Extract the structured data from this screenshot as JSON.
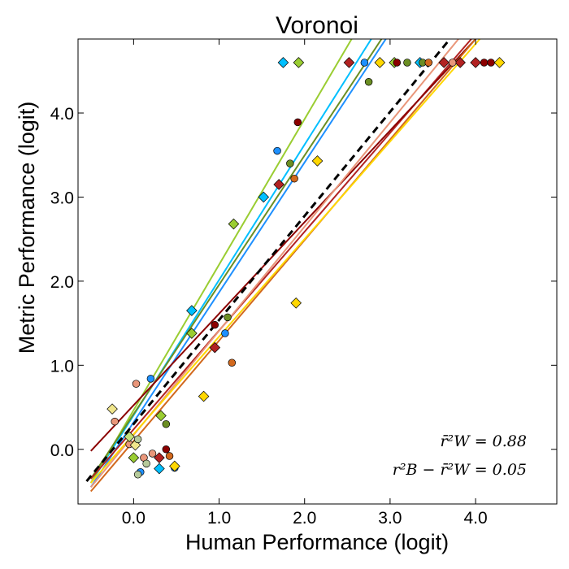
{
  "chart_data": {
    "type": "scatter",
    "title": "Voronoi",
    "xlabel": "Human Performance (logit)",
    "ylabel": "Metric Performance (logit)",
    "xlim": [
      -0.65,
      4.95
    ],
    "ylim": [
      -0.65,
      4.88
    ],
    "xticks": [
      0.0,
      1.0,
      2.0,
      3.0,
      4.0
    ],
    "yticks": [
      0.0,
      1.0,
      2.0,
      3.0,
      4.0
    ],
    "xtick_labels": [
      "0.0",
      "1.0",
      "2.0",
      "3.0",
      "4.0"
    ],
    "ytick_labels": [
      "0.0",
      "1.0",
      "2.0",
      "3.0",
      "4.0"
    ],
    "grid": false,
    "annotations": [
      "r̄²W = 0.88",
      "r²B − r̄²W = 0.05"
    ],
    "identity_line": {
      "style": "dashed",
      "color": "#000000",
      "points": [
        [
          -0.55,
          -0.38
        ],
        [
          3.7,
          4.88
        ]
      ]
    },
    "fit_lines": [
      {
        "color": "#1e90ff",
        "points": [
          [
            -0.5,
            -0.45
          ],
          [
            2.95,
            4.88
          ]
        ]
      },
      {
        "color": "#00bfff",
        "points": [
          [
            -0.5,
            -0.4
          ],
          [
            2.78,
            4.88
          ]
        ]
      },
      {
        "color": "#9acd32",
        "points": [
          [
            -0.5,
            -0.4
          ],
          [
            2.55,
            4.88
          ]
        ]
      },
      {
        "color": "#6b8e23",
        "points": [
          [
            -0.5,
            -0.35
          ],
          [
            2.9,
            4.88
          ]
        ]
      },
      {
        "color": "#b22222",
        "points": [
          [
            -0.5,
            -0.35
          ],
          [
            3.95,
            4.88
          ]
        ]
      },
      {
        "color": "#8b0000",
        "points": [
          [
            -0.5,
            -0.02
          ],
          [
            4.0,
            4.88
          ]
        ]
      },
      {
        "color": "#d2691e",
        "points": [
          [
            -0.5,
            -0.5
          ],
          [
            4.0,
            4.88
          ]
        ]
      },
      {
        "color": "#e9967a",
        "points": [
          [
            -0.5,
            -0.45
          ],
          [
            3.8,
            4.88
          ]
        ]
      },
      {
        "color": "#ffd700",
        "points": [
          [
            -0.5,
            -0.4
          ],
          [
            4.05,
            4.88
          ]
        ]
      }
    ],
    "series": [
      {
        "marker": "circle",
        "color": "#1e90ff",
        "points": [
          [
            0.2,
            0.84
          ],
          [
            0.08,
            -0.27
          ],
          [
            1.07,
            1.38
          ],
          [
            1.68,
            3.55
          ],
          [
            2.7,
            4.6
          ],
          [
            0.48,
            -0.22
          ]
        ]
      },
      {
        "marker": "diamond",
        "color": "#00bfff",
        "points": [
          [
            0.68,
            1.65
          ],
          [
            1.52,
            3.0
          ],
          [
            1.75,
            4.6
          ],
          [
            3.35,
            4.6
          ],
          [
            0.3,
            -0.23
          ]
        ]
      },
      {
        "marker": "diamond",
        "color": "#9acd32",
        "points": [
          [
            0.32,
            0.4
          ],
          [
            0.68,
            1.38
          ],
          [
            1.17,
            2.68
          ],
          [
            1.93,
            4.6
          ],
          [
            3.05,
            4.6
          ],
          [
            0.0,
            -0.1
          ]
        ]
      },
      {
        "marker": "circle",
        "color": "#6b8e23",
        "points": [
          [
            0.38,
            0.3
          ],
          [
            1.1,
            1.57
          ],
          [
            1.83,
            3.4
          ],
          [
            2.75,
            4.37
          ],
          [
            3.2,
            4.6
          ],
          [
            3.38,
            4.6
          ]
        ]
      },
      {
        "marker": "diamond",
        "color": "#b22222",
        "points": [
          [
            0.95,
            1.21
          ],
          [
            1.7,
            3.15
          ],
          [
            2.52,
            4.6
          ],
          [
            3.63,
            4.6
          ],
          [
            3.82,
            4.6
          ],
          [
            4.0,
            4.6
          ],
          [
            0.3,
            -0.1
          ]
        ]
      },
      {
        "marker": "circle",
        "color": "#8b0000",
        "points": [
          [
            0.95,
            1.48
          ],
          [
            1.92,
            3.89
          ],
          [
            3.08,
            4.6
          ],
          [
            4.1,
            4.6
          ],
          [
            4.18,
            4.6
          ],
          [
            0.38,
            0.0
          ]
        ]
      },
      {
        "marker": "circle",
        "color": "#d2691e",
        "points": [
          [
            1.15,
            1.03
          ],
          [
            1.88,
            3.22
          ],
          [
            3.45,
            4.6
          ],
          [
            0.42,
            -0.08
          ]
        ]
      },
      {
        "marker": "circle",
        "color": "#e9967a",
        "points": [
          [
            0.03,
            0.78
          ],
          [
            -0.22,
            0.33
          ],
          [
            0.22,
            -0.05
          ],
          [
            0.12,
            -0.1
          ],
          [
            3.73,
            4.6
          ],
          [
            -0.05,
            0.06
          ]
        ]
      },
      {
        "marker": "diamond",
        "color": "#ffd700",
        "points": [
          [
            0.82,
            0.63
          ],
          [
            1.9,
            1.74
          ],
          [
            2.15,
            3.43
          ],
          [
            2.88,
            4.6
          ],
          [
            4.28,
            4.6
          ],
          [
            0.48,
            -0.2
          ]
        ]
      },
      {
        "marker": "diamond",
        "color": "#f0e68c",
        "points": [
          [
            -0.25,
            0.48
          ],
          [
            0.02,
            0.05
          ]
        ]
      },
      {
        "marker": "circle",
        "color": "#b5c99a",
        "points": [
          [
            0.05,
            -0.3
          ],
          [
            0.15,
            -0.17
          ],
          [
            0.05,
            0.12
          ]
        ]
      },
      {
        "marker": "diamond",
        "color": "#c5e17a",
        "points": [
          [
            -0.05,
            0.15
          ]
        ]
      }
    ]
  }
}
